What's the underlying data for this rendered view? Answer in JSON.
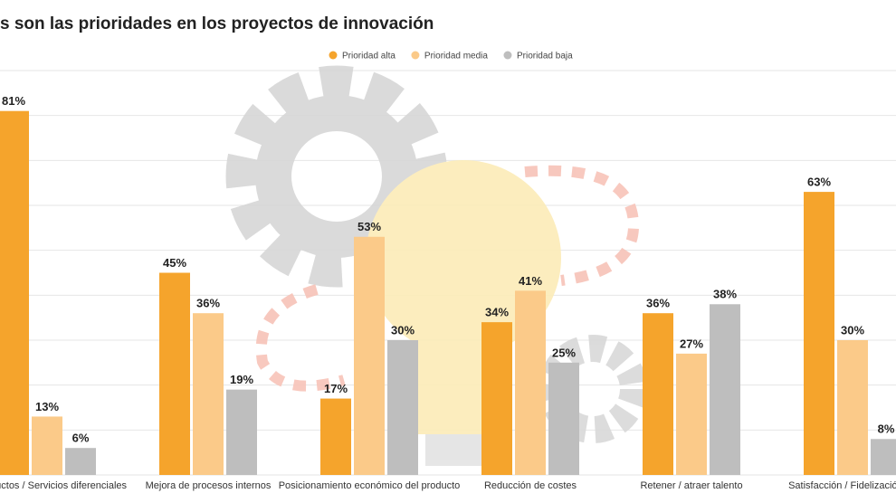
{
  "chart_data": {
    "type": "bar",
    "title": "s son las prioridades en los proyectos de innovación",
    "categories": [
      "e productos / Servicios diferenciales",
      "Mejora de procesos internos",
      "Posicionamiento económico del producto",
      "Reducción de costes",
      "Retener / atraer talento",
      "Satisfacción / Fidelización de"
    ],
    "series": [
      {
        "name": "Prioridad alta",
        "color": "#f5a42c",
        "values": [
          81,
          45,
          17,
          34,
          36,
          63
        ],
        "value_labels": [
          "81%",
          "45%",
          "17%",
          "34%",
          "36%",
          "63%"
        ]
      },
      {
        "name": "Prioridad media",
        "color": "#fbca89",
        "values": [
          13,
          36,
          53,
          41,
          27,
          30
        ],
        "value_labels": [
          "13%",
          "36%",
          "53%",
          "41%",
          "27%",
          "30%"
        ]
      },
      {
        "name": "Prioridad baja",
        "color": "#bebebe",
        "values": [
          6,
          19,
          30,
          25,
          38,
          8
        ],
        "value_labels": [
          "6%",
          "19%",
          "30%",
          "25%",
          "38%",
          "8%"
        ]
      }
    ],
    "ylim": [
      0,
      90
    ],
    "yticks": [
      0,
      10,
      20,
      30,
      40,
      50,
      60,
      70,
      80,
      90
    ],
    "grid": true
  }
}
